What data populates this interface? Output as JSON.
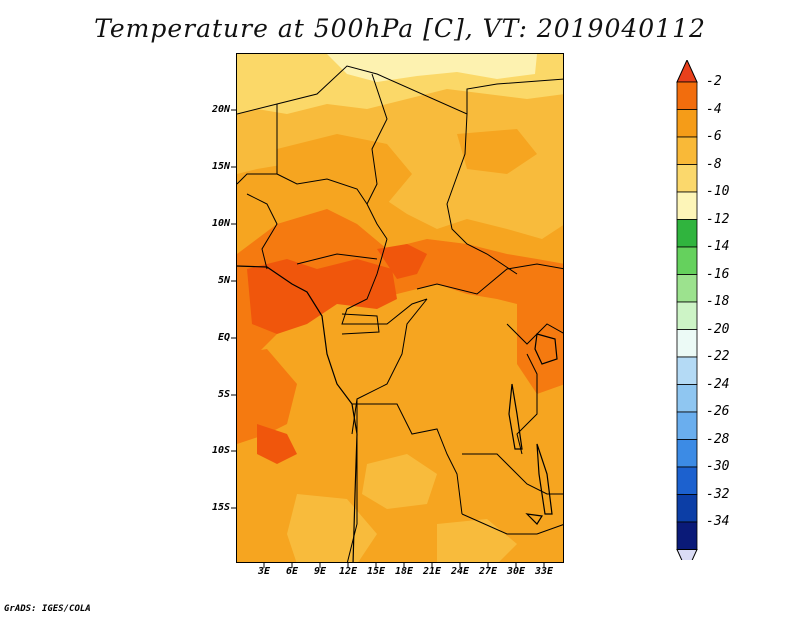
{
  "title": "Temperature at 500hPa [C], VT: 2019040112",
  "credit": "GrADS: IGES/COLA",
  "map": {
    "lat_ticks": [
      "20N",
      "15N",
      "10N",
      "5N",
      "EQ",
      "5S",
      "10S",
      "15S"
    ],
    "lon_ticks": [
      "3E",
      "6E",
      "9E",
      "12E",
      "15E",
      "18E",
      "21E",
      "24E",
      "27E",
      "30E",
      "33E"
    ],
    "lon_range": [
      0,
      35
    ],
    "lat_range": [
      -20,
      25
    ]
  },
  "colorbar": {
    "labels": [
      "-2",
      "-4",
      "-6",
      "-8",
      "-10",
      "-12",
      "-14",
      "-16",
      "-18",
      "-20",
      "-22",
      "-24",
      "-26",
      "-28",
      "-30",
      "-32",
      "-34"
    ],
    "colors": [
      "#e8401c",
      "#f26d0d",
      "#f59c18",
      "#f9b938",
      "#fbd86c",
      "#fdf5b8",
      "#30b43e",
      "#65d15d",
      "#9ce28e",
      "#cdf4c6",
      "#ecfaf6",
      "#b4daf5",
      "#8fc6f1",
      "#6aaeee",
      "#3c8be5",
      "#1c61cf",
      "#0c3ea6",
      "#0a1a78",
      "#dadcf5"
    ]
  },
  "fill_colors": {
    "darkest": "#f0560c",
    "dark": "#f57a10",
    "main": "#f6a520",
    "light": "#f8bb3c",
    "lighter": "#fbd868",
    "pale": "#fdf2b0"
  }
}
